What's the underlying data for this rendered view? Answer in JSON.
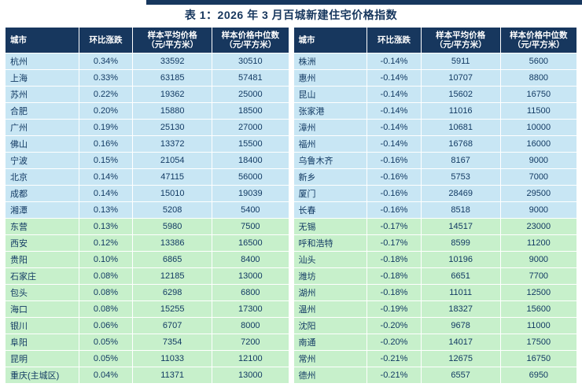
{
  "title": "表 1：2026 年 3 月百城新建住宅价格指数",
  "colors": {
    "header_bg": "#17375E",
    "header_text": "#FFFFFF",
    "title_text": "#17375E",
    "blue_row_bg": "#C8E6F4",
    "green_row_bg": "#C7F0CB",
    "body_text": "#123A63",
    "top_bar": "#17375E"
  },
  "table_headers": {
    "city": "城市",
    "change": "环比涨跌",
    "avg_line1": "样本平均价格",
    "avg_line2": "（元/平方米）",
    "median_line1": "样本价格中位数",
    "median_line2": "（元/平方米）"
  },
  "left_table": {
    "rows": [
      {
        "city": "杭州",
        "change": "0.34%",
        "avg": "33592",
        "median": "30510",
        "group": "blue"
      },
      {
        "city": "上海",
        "change": "0.33%",
        "avg": "63185",
        "median": "57481",
        "group": "blue"
      },
      {
        "city": "苏州",
        "change": "0.22%",
        "avg": "19362",
        "median": "25000",
        "group": "blue"
      },
      {
        "city": "合肥",
        "change": "0.20%",
        "avg": "15880",
        "median": "18500",
        "group": "blue"
      },
      {
        "city": "广州",
        "change": "0.19%",
        "avg": "25130",
        "median": "27000",
        "group": "blue"
      },
      {
        "city": "佛山",
        "change": "0.16%",
        "avg": "13372",
        "median": "15500",
        "group": "blue"
      },
      {
        "city": "宁波",
        "change": "0.15%",
        "avg": "21054",
        "median": "18400",
        "group": "blue"
      },
      {
        "city": "北京",
        "change": "0.14%",
        "avg": "47115",
        "median": "56000",
        "group": "blue"
      },
      {
        "city": "成都",
        "change": "0.14%",
        "avg": "15010",
        "median": "19039",
        "group": "blue"
      },
      {
        "city": "湘潭",
        "change": "0.13%",
        "avg": "5208",
        "median": "5400",
        "group": "blue"
      },
      {
        "city": "东营",
        "change": "0.13%",
        "avg": "5980",
        "median": "7500",
        "group": "green"
      },
      {
        "city": "西安",
        "change": "0.12%",
        "avg": "13386",
        "median": "16500",
        "group": "green"
      },
      {
        "city": "贵阳",
        "change": "0.10%",
        "avg": "6865",
        "median": "8400",
        "group": "green"
      },
      {
        "city": "石家庄",
        "change": "0.08%",
        "avg": "12185",
        "median": "13000",
        "group": "green"
      },
      {
        "city": "包头",
        "change": "0.08%",
        "avg": "6298",
        "median": "6800",
        "group": "green"
      },
      {
        "city": "海口",
        "change": "0.08%",
        "avg": "15255",
        "median": "17300",
        "group": "green"
      },
      {
        "city": "银川",
        "change": "0.06%",
        "avg": "6707",
        "median": "8000",
        "group": "green"
      },
      {
        "city": "阜阳",
        "change": "0.05%",
        "avg": "7354",
        "median": "7200",
        "group": "green"
      },
      {
        "city": "昆明",
        "change": "0.05%",
        "avg": "11033",
        "median": "12100",
        "group": "green"
      },
      {
        "city": "重庆(主城区)",
        "change": "0.04%",
        "avg": "11371",
        "median": "13000",
        "group": "green"
      }
    ]
  },
  "right_table": {
    "rows": [
      {
        "city": "株洲",
        "change": "-0.14%",
        "avg": "5911",
        "median": "5600",
        "group": "blue"
      },
      {
        "city": "惠州",
        "change": "-0.14%",
        "avg": "10707",
        "median": "8800",
        "group": "blue"
      },
      {
        "city": "昆山",
        "change": "-0.14%",
        "avg": "15602",
        "median": "16750",
        "group": "blue"
      },
      {
        "city": "张家港",
        "change": "-0.14%",
        "avg": "11016",
        "median": "11500",
        "group": "blue"
      },
      {
        "city": "漳州",
        "change": "-0.14%",
        "avg": "10681",
        "median": "10000",
        "group": "blue"
      },
      {
        "city": "福州",
        "change": "-0.14%",
        "avg": "16768",
        "median": "16000",
        "group": "blue"
      },
      {
        "city": "乌鲁木齐",
        "change": "-0.16%",
        "avg": "8167",
        "median": "9000",
        "group": "blue"
      },
      {
        "city": "新乡",
        "change": "-0.16%",
        "avg": "5753",
        "median": "7000",
        "group": "blue"
      },
      {
        "city": "厦门",
        "change": "-0.16%",
        "avg": "28469",
        "median": "29500",
        "group": "blue"
      },
      {
        "city": "长春",
        "change": "-0.16%",
        "avg": "8518",
        "median": "9000",
        "group": "blue"
      },
      {
        "city": "无锡",
        "change": "-0.17%",
        "avg": "14517",
        "median": "23000",
        "group": "green"
      },
      {
        "city": "呼和浩特",
        "change": "-0.17%",
        "avg": "8599",
        "median": "11200",
        "group": "green"
      },
      {
        "city": "汕头",
        "change": "-0.18%",
        "avg": "10196",
        "median": "9000",
        "group": "green"
      },
      {
        "city": "潍坊",
        "change": "-0.18%",
        "avg": "6651",
        "median": "7700",
        "group": "green"
      },
      {
        "city": "湖州",
        "change": "-0.18%",
        "avg": "11011",
        "median": "12500",
        "group": "green"
      },
      {
        "city": "温州",
        "change": "-0.19%",
        "avg": "18327",
        "median": "15600",
        "group": "green"
      },
      {
        "city": "沈阳",
        "change": "-0.20%",
        "avg": "9678",
        "median": "11000",
        "group": "green"
      },
      {
        "city": "南通",
        "change": "-0.20%",
        "avg": "14017",
        "median": "17500",
        "group": "green"
      },
      {
        "city": "常州",
        "change": "-0.21%",
        "avg": "12675",
        "median": "16750",
        "group": "green"
      },
      {
        "city": "德州",
        "change": "-0.21%",
        "avg": "6557",
        "median": "6950",
        "group": "green"
      }
    ]
  }
}
